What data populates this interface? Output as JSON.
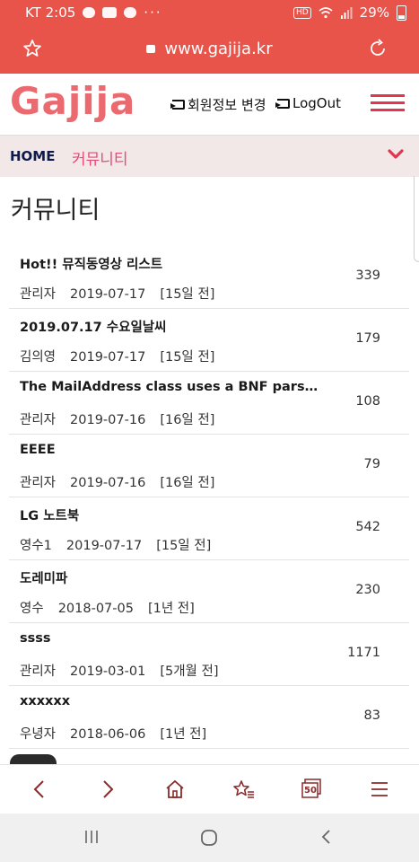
{
  "status_bar": {
    "carrier_time": "KT 2:05",
    "dots": "···",
    "hd": "HD",
    "battery": "29%"
  },
  "browser": {
    "url": "www.gajija.kr"
  },
  "header": {
    "logo": "Gajija",
    "profile_link": "회원정보 변경",
    "logout_link": "LogOut"
  },
  "breadcrumb": {
    "home": "HOME",
    "current": "커뮤니티"
  },
  "page": {
    "title": "커뮤니티"
  },
  "posts": [
    {
      "title": "Hot!! 뮤직동영상 리스트",
      "author": "관리자",
      "date": "2019-07-17",
      "ago": "[15일 전]",
      "views": "339"
    },
    {
      "title": "2019.07.17 수요일날씨",
      "author": "김의영",
      "date": "2019-07-17",
      "ago": "[15일 전]",
      "views": "179"
    },
    {
      "title": "The MailAddress class uses a BNF parser to ...",
      "author": "관리자",
      "date": "2019-07-16",
      "ago": "[16일 전]",
      "views": "108"
    },
    {
      "title": "EEEE",
      "author": "관리자",
      "date": "2019-07-16",
      "ago": "[16일 전]",
      "views": "79"
    },
    {
      "title": "LG 노트북",
      "author": "영수1",
      "date": "2019-07-17",
      "ago": "[15일 전]",
      "views": "542"
    },
    {
      "title": "도레미파",
      "author": "영수",
      "date": "2018-07-05",
      "ago": "[1년 전]",
      "views": "230"
    },
    {
      "title": "ssss",
      "author": "관리자",
      "date": "2019-03-01",
      "ago": "[5개월 전]",
      "views": "1171"
    },
    {
      "title": "xxxxxx",
      "author": "우녕자",
      "date": "2018-06-06",
      "ago": "[1년 전]",
      "views": "83"
    }
  ],
  "toolbar": {
    "tabs_count": "50"
  },
  "colors": {
    "browser_bar": "#e8534a",
    "logo": "#ea6a70",
    "accent": "#e2354f",
    "breadcrumb_bg": "#f2e8e8"
  }
}
